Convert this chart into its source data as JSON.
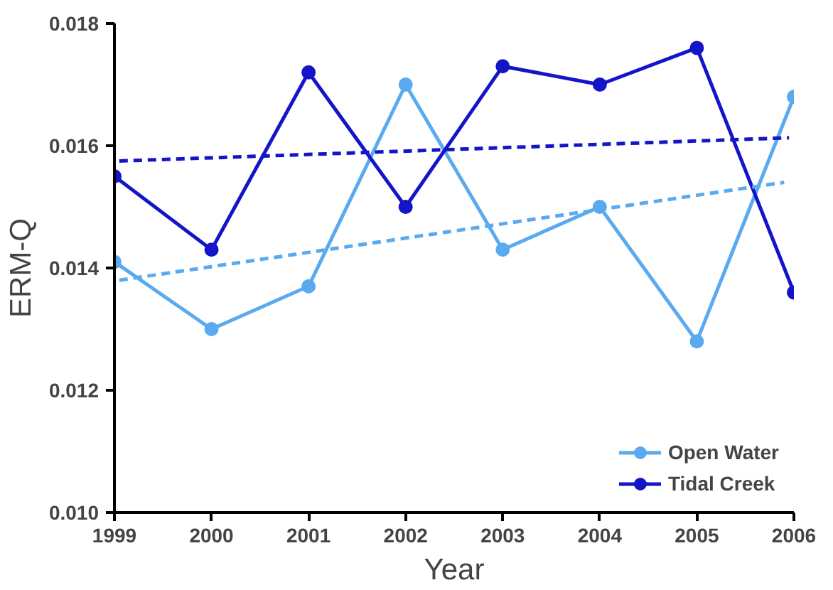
{
  "chart_data": {
    "type": "line",
    "xlabel": "Year",
    "ylabel": "ERM-Q",
    "x": [
      1999,
      2000,
      2001,
      2002,
      2003,
      2004,
      2005,
      2006
    ],
    "series": [
      {
        "name": "Open Water",
        "color": "#5aaaf0",
        "values": [
          0.0141,
          0.013,
          0.0137,
          0.017,
          0.0143,
          0.015,
          0.0128,
          0.0168
        ]
      },
      {
        "name": "Tidal Creek",
        "color": "#1414c8",
        "values": [
          0.0155,
          0.0143,
          0.0172,
          0.015,
          0.0173,
          0.017,
          0.0176,
          0.0136
        ]
      },
      {
        "type": "line",
        "color": "#5aaaf0",
        "x": [
          1999.05,
          2005.9
        ],
        "values": [
          0.0138,
          0.0154
        ],
        "line_style": "dashed",
        "marker": "none"
      },
      {
        "type": "line",
        "color": "#1414c8",
        "x": [
          1999.05,
          2005.95
        ],
        "values": [
          0.01575,
          0.01613
        ],
        "line_style": "dashed",
        "marker": "none"
      }
    ],
    "xlim": [
      1999,
      2006
    ],
    "xticks": [
      1999,
      2000,
      2001,
      2002,
      2003,
      2004,
      2005,
      2006
    ],
    "ylim": [
      0.01,
      0.018
    ],
    "yticks": [
      {
        "value": 0.01,
        "label": "0.010"
      },
      {
        "value": 0.012,
        "label": "0.012"
      },
      {
        "value": 0.014,
        "label": "0.014"
      },
      {
        "value": 0.016,
        "label": "0.016"
      },
      {
        "value": 0.018,
        "label": "0.018"
      }
    ],
    "marker": "circle",
    "line_style": "solid",
    "grid": false,
    "legend": "bottom right"
  }
}
